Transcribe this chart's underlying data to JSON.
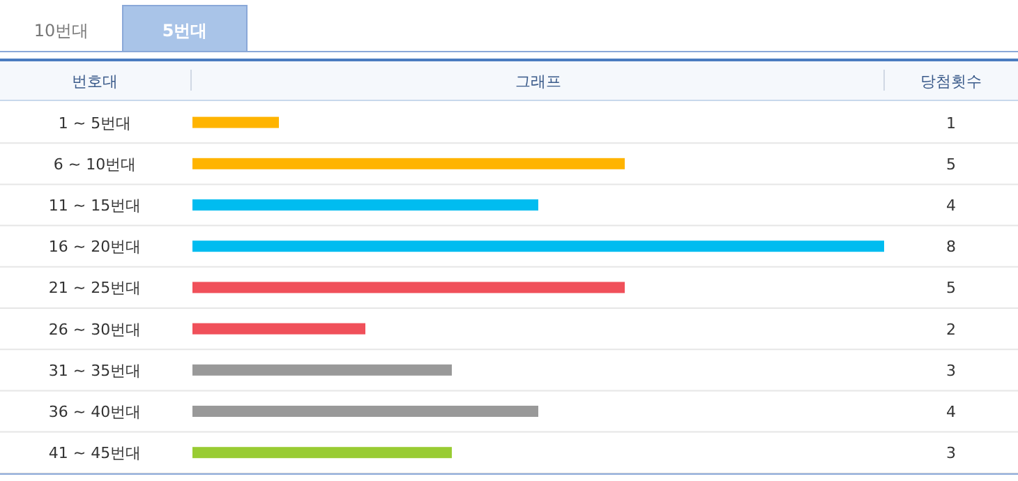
{
  "chart_data": {
    "type": "bar",
    "orientation": "horizontal",
    "ylabel": "번호대",
    "xlabel": "그래프",
    "annotations": [
      "당첨횟수",
      "10번대",
      "5번대"
    ],
    "categories": [
      "1 ~ 5번대",
      "6 ~ 10번대",
      "11 ~ 15번대",
      "16 ~ 20번대",
      "21 ~ 25번대",
      "26 ~ 30번대",
      "31 ~ 35번대",
      "36 ~ 40번대",
      "41 ~ 45번대"
    ],
    "values": [
      1,
      5,
      4,
      8,
      5,
      2,
      3,
      4,
      3
    ],
    "colors": [
      "#ffb400",
      "#ffb400",
      "#00bcf0",
      "#00bcf0",
      "#f0505a",
      "#f0505a",
      "#999999",
      "#999999",
      "#99cc33"
    ],
    "data_labels": true
  }
}
